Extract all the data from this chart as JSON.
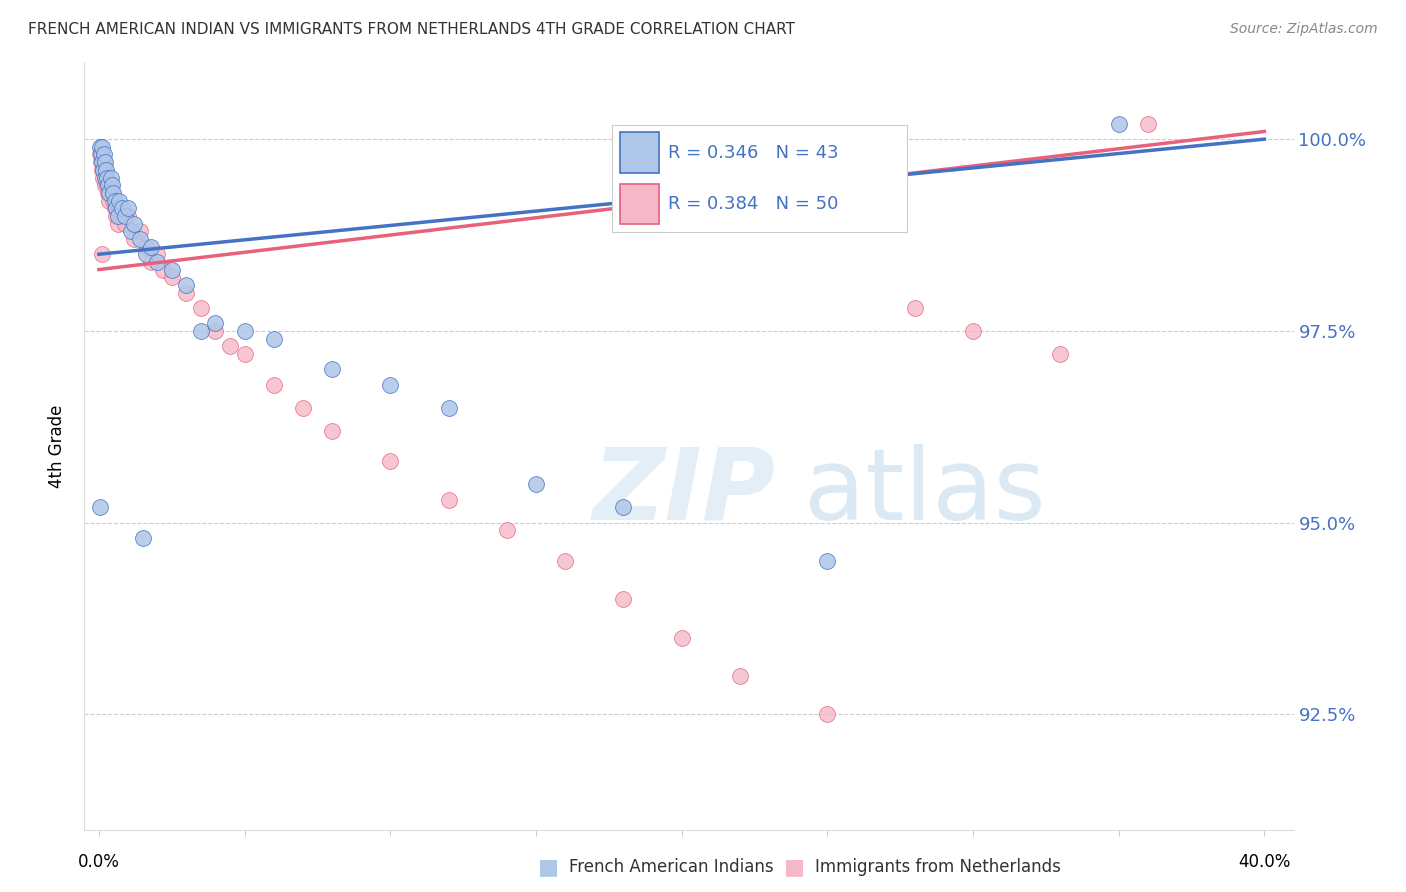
{
  "title": "FRENCH AMERICAN INDIAN VS IMMIGRANTS FROM NETHERLANDS 4TH GRADE CORRELATION CHART",
  "source": "Source: ZipAtlas.com",
  "ylabel": "4th Grade",
  "blue_R": 0.346,
  "blue_N": 43,
  "pink_R": 0.384,
  "pink_N": 50,
  "blue_color": "#aec6e8",
  "blue_line_color": "#4472c4",
  "pink_color": "#f4b8c8",
  "pink_line_color": "#e8607a",
  "legend_text_color": "#4472c4",
  "y_min": 91.0,
  "y_max": 101.0,
  "x_min": -0.5,
  "x_max": 41.0,
  "yticks": [
    92.5,
    95.0,
    97.5,
    100.0
  ],
  "xtick_labels_pos": [
    0,
    40
  ],
  "blue_x": [
    0.05,
    0.08,
    0.1,
    0.12,
    0.15,
    0.18,
    0.2,
    0.22,
    0.25,
    0.28,
    0.3,
    0.35,
    0.4,
    0.45,
    0.5,
    0.55,
    0.6,
    0.65,
    0.7,
    0.8,
    0.9,
    1.0,
    1.1,
    1.2,
    1.4,
    1.6,
    1.8,
    2.0,
    2.5,
    3.0,
    3.5,
    4.0,
    5.0,
    6.0,
    8.0,
    10.0,
    12.0,
    15.0,
    18.0,
    25.0,
    0.05,
    1.5,
    35.0
  ],
  "blue_y": [
    99.9,
    99.8,
    99.7,
    99.9,
    99.6,
    99.8,
    99.5,
    99.7,
    99.6,
    99.5,
    99.4,
    99.3,
    99.5,
    99.4,
    99.3,
    99.2,
    99.1,
    99.0,
    99.2,
    99.1,
    99.0,
    99.1,
    98.8,
    98.9,
    98.7,
    98.5,
    98.6,
    98.4,
    98.3,
    98.1,
    97.5,
    97.6,
    97.5,
    97.4,
    97.0,
    96.8,
    96.5,
    95.5,
    95.2,
    94.5,
    95.2,
    94.8,
    100.2
  ],
  "pink_x": [
    0.05,
    0.08,
    0.1,
    0.12,
    0.15,
    0.18,
    0.2,
    0.22,
    0.25,
    0.28,
    0.3,
    0.35,
    0.4,
    0.45,
    0.5,
    0.55,
    0.6,
    0.65,
    0.7,
    0.8,
    0.9,
    1.0,
    1.2,
    1.4,
    1.6,
    1.8,
    2.0,
    2.2,
    2.5,
    3.0,
    3.5,
    4.0,
    4.5,
    5.0,
    6.0,
    7.0,
    8.0,
    10.0,
    12.0,
    14.0,
    16.0,
    18.0,
    20.0,
    22.0,
    25.0,
    28.0,
    30.0,
    33.0,
    36.0,
    0.1
  ],
  "pink_y": [
    99.8,
    99.7,
    99.6,
    99.8,
    99.5,
    99.7,
    99.4,
    99.6,
    99.5,
    99.4,
    99.3,
    99.2,
    99.4,
    99.3,
    99.2,
    99.1,
    99.0,
    98.9,
    99.1,
    99.0,
    98.9,
    99.0,
    98.7,
    98.8,
    98.6,
    98.4,
    98.5,
    98.3,
    98.2,
    98.0,
    97.8,
    97.5,
    97.3,
    97.2,
    96.8,
    96.5,
    96.2,
    95.8,
    95.3,
    94.9,
    94.5,
    94.0,
    93.5,
    93.0,
    92.5,
    97.8,
    97.5,
    97.2,
    100.2,
    98.5
  ],
  "blue_line_x0": 0.0,
  "blue_line_y0": 98.5,
  "blue_line_x1": 40.0,
  "blue_line_y1": 100.0,
  "pink_line_x0": 0.0,
  "pink_line_y0": 98.3,
  "pink_line_x1": 40.0,
  "pink_line_y1": 100.1
}
